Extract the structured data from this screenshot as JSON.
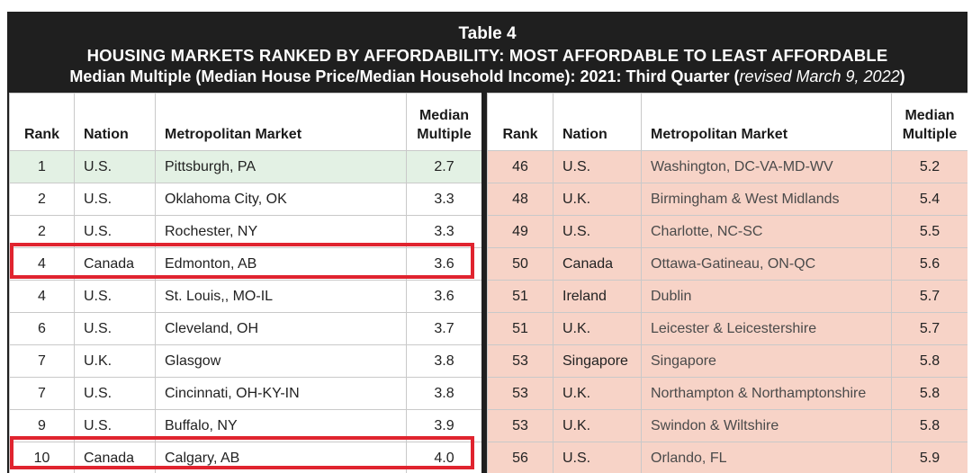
{
  "header": {
    "table_label": "Table 4",
    "title": "HOUSING MARKETS RANKED BY AFFORDABILITY: MOST AFFORDABLE TO LEAST AFFORDABLE",
    "subtitle": "Median Multiple (Median House Price/Median Household Income): 2021: Third Quarter (",
    "revised_note": "revised March 9, 2022",
    "subtitle_close": ")"
  },
  "columns": {
    "rank": "Rank",
    "nation": "Nation",
    "market": "Metropolitan Market",
    "median_line1": "Median",
    "median_line2": "Multiple"
  },
  "left_rows": [
    {
      "rank": "1",
      "nation": "U.S.",
      "market": "Pittsburgh, PA",
      "multiple": "2.7"
    },
    {
      "rank": "2",
      "nation": "U.S.",
      "market": "Oklahoma City, OK",
      "multiple": "3.3"
    },
    {
      "rank": "2",
      "nation": "U.S.",
      "market": "Rochester, NY",
      "multiple": "3.3"
    },
    {
      "rank": "4",
      "nation": "Canada",
      "market": "Edmonton, AB",
      "multiple": "3.6"
    },
    {
      "rank": "4",
      "nation": "U.S.",
      "market": "St. Louis,, MO-IL",
      "multiple": "3.6"
    },
    {
      "rank": "6",
      "nation": "U.S.",
      "market": "Cleveland, OH",
      "multiple": "3.7"
    },
    {
      "rank": "7",
      "nation": "U.K.",
      "market": "Glasgow",
      "multiple": "3.8"
    },
    {
      "rank": "7",
      "nation": "U.S.",
      "market": "Cincinnati, OH-KY-IN",
      "multiple": "3.8"
    },
    {
      "rank": "9",
      "nation": "U.S.",
      "market": "Buffalo, NY",
      "multiple": "3.9"
    },
    {
      "rank": "10",
      "nation": "Canada",
      "market": "Calgary, AB",
      "multiple": "4.0"
    }
  ],
  "right_rows": [
    {
      "rank": "46",
      "nation": "U.S.",
      "market": "Washington, DC-VA-MD-WV",
      "multiple": "5.2"
    },
    {
      "rank": "48",
      "nation": "U.K.",
      "market": "Birmingham & West Midlands",
      "multiple": "5.4"
    },
    {
      "rank": "49",
      "nation": "U.S.",
      "market": "Charlotte, NC-SC",
      "multiple": "5.5"
    },
    {
      "rank": "50",
      "nation": "Canada",
      "market": "Ottawa-Gatineau, ON-QC",
      "multiple": "5.6"
    },
    {
      "rank": "51",
      "nation": "Ireland",
      "market": "Dublin",
      "multiple": "5.7"
    },
    {
      "rank": "51",
      "nation": "U.K.",
      "market": "Leicester & Leicestershire",
      "multiple": "5.7"
    },
    {
      "rank": "53",
      "nation": "Singapore",
      "market": "Singapore",
      "multiple": "5.8"
    },
    {
      "rank": "53",
      "nation": "U.K.",
      "market": "Northampton & Northamptonshire",
      "multiple": "5.8"
    },
    {
      "rank": "53",
      "nation": "U.K.",
      "market": "Swindon & Wiltshire",
      "multiple": "5.8"
    },
    {
      "rank": "56",
      "nation": "U.S.",
      "market": "Orlando, FL",
      "multiple": "5.9"
    }
  ],
  "colors": {
    "header_bg": "#1f1f1f",
    "top_row_green": "#e3f1e4",
    "right_panel_salmon": "#f7d3c7",
    "highlight_box_red": "#e0242f"
  }
}
